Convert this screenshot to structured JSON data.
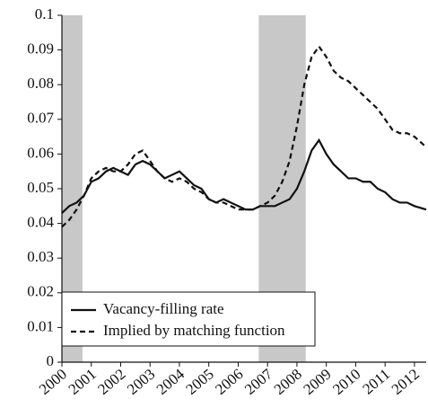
{
  "chart_data": {
    "type": "line",
    "x": [
      2000,
      2000.25,
      2000.5,
      2000.75,
      2001,
      2001.25,
      2001.5,
      2001.75,
      2002,
      2002.25,
      2002.5,
      2002.75,
      2003,
      2003.25,
      2003.5,
      2003.75,
      2004,
      2004.25,
      2004.5,
      2004.75,
      2005,
      2005.25,
      2005.5,
      2005.75,
      2006,
      2006.25,
      2006.5,
      2006.75,
      2007,
      2007.25,
      2007.5,
      2007.75,
      2008,
      2008.25,
      2008.5,
      2008.75,
      2009,
      2009.25,
      2009.5,
      2009.75,
      2010,
      2010.25,
      2010.5,
      2010.75,
      2011,
      2011.25,
      2011.5,
      2011.75,
      2012,
      2012.4
    ],
    "series": [
      {
        "name": "Vacancy-filling rate",
        "color": "#111111",
        "dash": "solid",
        "values": [
          0.043,
          0.045,
          0.046,
          0.048,
          0.052,
          0.053,
          0.055,
          0.056,
          0.055,
          0.054,
          0.057,
          0.058,
          0.057,
          0.055,
          0.053,
          0.054,
          0.055,
          0.053,
          0.051,
          0.05,
          0.047,
          0.046,
          0.047,
          0.046,
          0.045,
          0.044,
          0.044,
          0.045,
          0.045,
          0.045,
          0.046,
          0.047,
          0.05,
          0.055,
          0.061,
          0.064,
          0.06,
          0.057,
          0.055,
          0.053,
          0.053,
          0.052,
          0.052,
          0.05,
          0.049,
          0.047,
          0.046,
          0.046,
          0.045,
          0.044
        ]
      },
      {
        "name": "Implied by matching function",
        "color": "#111111",
        "dash": "dashed",
        "values": [
          0.039,
          0.041,
          0.044,
          0.048,
          0.053,
          0.055,
          0.056,
          0.055,
          0.055,
          0.057,
          0.06,
          0.061,
          0.058,
          0.055,
          0.053,
          0.052,
          0.053,
          0.052,
          0.05,
          0.049,
          0.047,
          0.046,
          0.046,
          0.045,
          0.044,
          0.044,
          0.044,
          0.045,
          0.046,
          0.048,
          0.052,
          0.058,
          0.068,
          0.08,
          0.088,
          0.091,
          0.088,
          0.084,
          0.082,
          0.081,
          0.079,
          0.077,
          0.075,
          0.073,
          0.07,
          0.067,
          0.066,
          0.066,
          0.065,
          0.062
        ]
      }
    ],
    "shaded_regions": [
      [
        2000,
        2000.7
      ],
      [
        2006.7,
        2008.3
      ]
    ],
    "shade_color": "#c8c8c8",
    "xlim": [
      2000,
      2012.4
    ],
    "xticks": [
      2000,
      2001,
      2002,
      2003,
      2004,
      2005,
      2006,
      2007,
      2008,
      2009,
      2010,
      2011,
      2012
    ],
    "ylim": [
      0,
      0.1
    ],
    "yticks": [
      0,
      0.01,
      0.02,
      0.03,
      0.04,
      0.05,
      0.06,
      0.07,
      0.08,
      0.09,
      0.1
    ],
    "legend": "lower-left"
  }
}
